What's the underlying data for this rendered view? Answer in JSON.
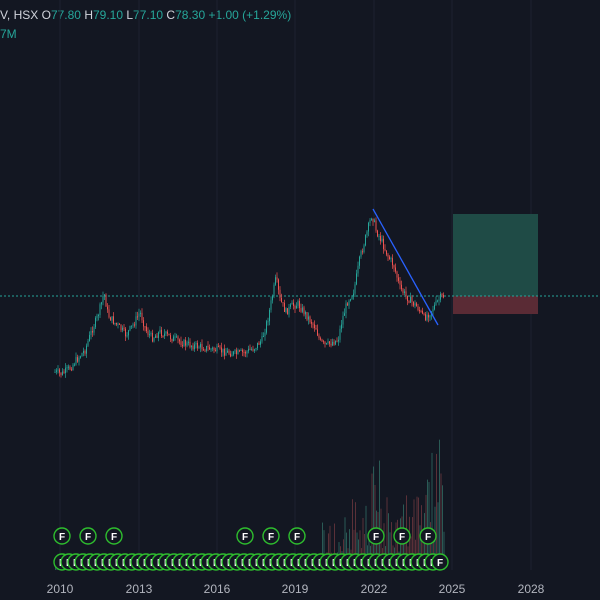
{
  "legend": {
    "prefix": "V, HSX",
    "open_label": "O",
    "open": "77.80",
    "high_label": "H",
    "high": "79.10",
    "low_label": "L",
    "low": "77.10",
    "close_label": "C",
    "close": "78.30",
    "change": "+1.00 (+1.29%)"
  },
  "volume_label": "7M",
  "x_axis": {
    "labels": [
      "2010",
      "2013",
      "2016",
      "2019",
      "2022",
      "2025",
      "2028"
    ]
  },
  "event_marker_letter": "F",
  "colors": {
    "background": "#131722",
    "up": "#26a69a",
    "down": "#ef5350",
    "trendline": "#2962ff",
    "profit_zone": "#1f4b46",
    "loss_zone": "#5a2b35",
    "marker_border": "#2ebd2e"
  },
  "chart_data": {
    "type": "line",
    "x_axis_labels": [
      "2010",
      "2013",
      "2016",
      "2019",
      "2022",
      "2025",
      "2028"
    ],
    "last_close": 78.3
  }
}
